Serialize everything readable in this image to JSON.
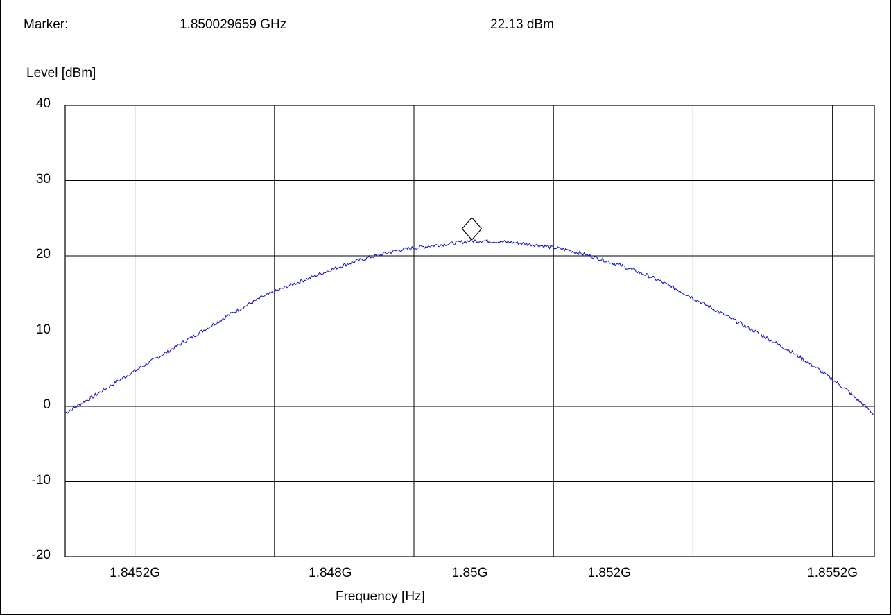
{
  "marker": {
    "label": "Marker:",
    "frequency": "1.850029659 GHz",
    "level": "22.13 dBm",
    "x_hz": 1850029659,
    "y_dbm": 22.13
  },
  "chart_data": {
    "type": "line",
    "title": "",
    "xlabel": "Frequency [Hz]",
    "ylabel": "Level [dBm]",
    "xlim": [
      1844200000,
      1855800000
    ],
    "ylim": [
      -20,
      40
    ],
    "grid": true,
    "x_ticks": [
      {
        "value": 1845200000,
        "label": "1.8452G"
      },
      {
        "value": 1848000000,
        "label": "1.848G"
      },
      {
        "value": 1850000000,
        "label": "1.85G"
      },
      {
        "value": 1852000000,
        "label": "1.852G"
      },
      {
        "value": 1855200000,
        "label": "1.8552G"
      }
    ],
    "x_gridlines": [
      1845200000,
      1847200000,
      1849200000,
      1851200000,
      1853200000,
      1855200000
    ],
    "y_ticks": [
      {
        "value": 40,
        "label": "40"
      },
      {
        "value": 30,
        "label": "30"
      },
      {
        "value": 20,
        "label": "20"
      },
      {
        "value": 10,
        "label": "10"
      },
      {
        "value": 0,
        "label": "0"
      },
      {
        "value": -10,
        "label": "-10"
      },
      {
        "value": -20,
        "label": "-20"
      }
    ],
    "series": [
      {
        "color": "#1a1acc",
        "x": [
          1844200000,
          1844600000,
          1845000000,
          1845400000,
          1845800000,
          1846200000,
          1846600000,
          1847000000,
          1847400000,
          1847800000,
          1848200000,
          1848600000,
          1849000000,
          1849400000,
          1849800000,
          1850000000,
          1850200000,
          1850600000,
          1851000000,
          1851400000,
          1851800000,
          1852200000,
          1852600000,
          1853000000,
          1853400000,
          1853800000,
          1854200000,
          1854600000,
          1855000000,
          1855400000,
          1855800000
        ],
        "y": [
          -0.9,
          1.3,
          3.6,
          5.8,
          8.0,
          10.2,
          12.4,
          14.4,
          16.0,
          17.4,
          18.8,
          19.9,
          20.8,
          21.3,
          21.7,
          22.0,
          22.0,
          21.8,
          21.4,
          20.8,
          19.8,
          18.6,
          17.2,
          15.4,
          13.4,
          11.4,
          9.4,
          7.3,
          4.9,
          2.2,
          -1.1
        ]
      }
    ]
  },
  "colors": {
    "trace": "#1a1acc",
    "grid": "#000000",
    "background": "#ffffff"
  }
}
